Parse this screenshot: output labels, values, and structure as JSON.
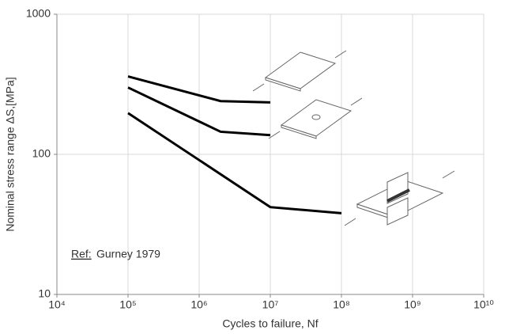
{
  "chart_data": {
    "type": "line",
    "x_label": "Cycles to failure, Nf",
    "y_label": "Nominal stress range ΔS,[MPa]",
    "annotation": {
      "ref": "Ref:",
      "text": "Gurney 1979"
    },
    "xscale": "log",
    "yscale": "log",
    "grid": true,
    "xlim": [
      10000,
      10000000000
    ],
    "ylim": [
      10,
      1000
    ],
    "xticks": [
      {
        "value": 10000,
        "label": "10⁴"
      },
      {
        "value": 100000,
        "label": "10⁵"
      },
      {
        "value": 1000000,
        "label": "10⁶"
      },
      {
        "value": 10000000,
        "label": "10⁷"
      },
      {
        "value": 100000000,
        "label": "10⁸"
      },
      {
        "value": 1000000000,
        "label": "10⁹"
      },
      {
        "value": 10000000000,
        "label": "10¹⁰"
      }
    ],
    "yticks": [
      10,
      100,
      1000
    ],
    "series": [
      {
        "color": "#000000",
        "x": [
          100000,
          2000000,
          10000000
        ],
        "values": [
          360,
          240,
          235
        ]
      },
      {
        "color": "#000000",
        "x": [
          100000,
          2000000,
          10000000
        ],
        "values": [
          300,
          145,
          137
        ]
      },
      {
        "color": "#000000",
        "x": [
          100000,
          10000000,
          100000000
        ],
        "values": [
          197,
          42,
          38
        ]
      }
    ]
  }
}
